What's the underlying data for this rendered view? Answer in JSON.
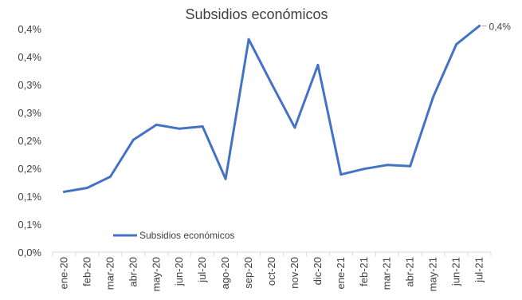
{
  "chart_data": {
    "type": "line",
    "title": "Subsidios económicos",
    "categories": [
      "ene-20",
      "feb-20",
      "mar-20",
      "abr-20",
      "may-20",
      "jun-20",
      "jul-20",
      "ago-20",
      "sep-20",
      "oct-20",
      "nov-20",
      "dic-20",
      "ene-21",
      "feb-21",
      "mar-21",
      "abr-21",
      "may-21",
      "jun-21",
      "jul-21"
    ],
    "series": [
      {
        "name": "Subsidios económicos",
        "color": "#4472C4",
        "values": [
          0.108,
          0.115,
          0.135,
          0.201,
          0.228,
          0.221,
          0.225,
          0.131,
          0.381,
          0.301,
          0.223,
          0.335,
          0.139,
          0.149,
          0.156,
          0.154,
          0.278,
          0.372,
          0.405
        ]
      }
    ],
    "y_tick_labels": [
      "0,0%",
      "0,1%",
      "0,1%",
      "0,2%",
      "0,2%",
      "0,3%",
      "0,3%",
      "0,4%",
      "0,4%"
    ],
    "y_tick_values": [
      0,
      0.05,
      0.1,
      0.15,
      0.2,
      0.25,
      0.3,
      0.35,
      0.4
    ],
    "ylim": [
      0,
      0.4
    ],
    "last_point_label": "0,4%",
    "legend": {
      "label": "Subsidios económicos",
      "placement": "lower-left inside plot"
    },
    "grid": false,
    "xlabel": "",
    "ylabel": ""
  }
}
